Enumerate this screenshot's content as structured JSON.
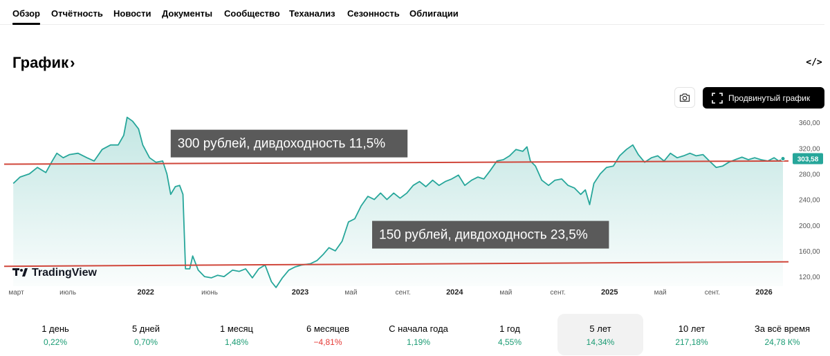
{
  "tabs": [
    {
      "label": "Обзор",
      "active": true
    },
    {
      "label": "Отчётность"
    },
    {
      "label": "Новости"
    },
    {
      "label": "Документы"
    },
    {
      "label": "Сообщество"
    },
    {
      "label": "Теханализ"
    },
    {
      "label": "Сезонность"
    },
    {
      "label": "Облигации"
    }
  ],
  "header": {
    "title": "График",
    "chevron": "›",
    "embed_icon": "code-icon",
    "embed_text": "</>"
  },
  "toolbar": {
    "camera_icon": "camera-icon",
    "advanced_label": "Продвинутый график",
    "advanced_icon": "fullscreen-icon"
  },
  "chart_data": {
    "type": "area",
    "watermark": "TradingView",
    "y_ticks": [
      "360,00",
      "320,00",
      "280,00",
      "240,00",
      "200,00",
      "160,00",
      "120,00"
    ],
    "ylim": [
      105,
      372
    ],
    "x_tick_labels": [
      "март",
      "июль",
      "2022",
      "июнь",
      "2023",
      "май",
      "сент.",
      "2024",
      "май",
      "сент.",
      "2025",
      "май",
      "сент.",
      "2026"
    ],
    "x_tick_dates": [
      "2021-03-01",
      "2021-07-01",
      "2022-01-01",
      "2022-06-01",
      "2023-01-01",
      "2023-05-01",
      "2023-09-01",
      "2024-01-01",
      "2024-05-01",
      "2024-09-01",
      "2025-01-01",
      "2025-05-01",
      "2025-09-01",
      "2026-01-01"
    ],
    "xlim": [
      "2021-02-20",
      "2026-02-28"
    ],
    "last_price": "303,58",
    "last_price_value": 303.58,
    "colors": {
      "line": "#26a69a",
      "fill": "#26a69a",
      "annotation_line": "#d0463a",
      "callout_bg": "#5a5a5a",
      "axis_text": "#555555"
    },
    "series": [
      {
        "points": [
          [
            "2021-02-22",
            265
          ],
          [
            "2021-03-10",
            275
          ],
          [
            "2021-04-01",
            280
          ],
          [
            "2021-04-20",
            290
          ],
          [
            "2021-05-10",
            282
          ],
          [
            "2021-05-25",
            300
          ],
          [
            "2021-06-05",
            312
          ],
          [
            "2021-06-20",
            305
          ],
          [
            "2021-07-05",
            310
          ],
          [
            "2021-07-25",
            312
          ],
          [
            "2021-08-15",
            305
          ],
          [
            "2021-09-01",
            300
          ],
          [
            "2021-09-20",
            318
          ],
          [
            "2021-10-10",
            325
          ],
          [
            "2021-10-28",
            325
          ],
          [
            "2021-11-10",
            340
          ],
          [
            "2021-11-18",
            368
          ],
          [
            "2021-12-01",
            362
          ],
          [
            "2021-12-15",
            350
          ],
          [
            "2021-12-25",
            325
          ],
          [
            "2022-01-10",
            305
          ],
          [
            "2022-01-25",
            298
          ],
          [
            "2022-02-10",
            300
          ],
          [
            "2022-02-20",
            280
          ],
          [
            "2022-03-01",
            248
          ],
          [
            "2022-03-12",
            260
          ],
          [
            "2022-03-22",
            262
          ],
          [
            "2022-03-30",
            248
          ],
          [
            "2022-04-05",
            132
          ],
          [
            "2022-04-15",
            132
          ],
          [
            "2022-04-22",
            152
          ],
          [
            "2022-05-05",
            130
          ],
          [
            "2022-05-20",
            120
          ],
          [
            "2022-06-05",
            118
          ],
          [
            "2022-06-20",
            122
          ],
          [
            "2022-07-05",
            120
          ],
          [
            "2022-07-25",
            130
          ],
          [
            "2022-08-10",
            128
          ],
          [
            "2022-08-25",
            132
          ],
          [
            "2022-09-10",
            118
          ],
          [
            "2022-09-25",
            132
          ],
          [
            "2022-10-10",
            138
          ],
          [
            "2022-10-25",
            112
          ],
          [
            "2022-11-05",
            103
          ],
          [
            "2022-11-20",
            118
          ],
          [
            "2022-12-05",
            130
          ],
          [
            "2022-12-20",
            135
          ],
          [
            "2023-01-05",
            138
          ],
          [
            "2023-01-25",
            140
          ],
          [
            "2023-02-10",
            145
          ],
          [
            "2023-02-25",
            155
          ],
          [
            "2023-03-10",
            165
          ],
          [
            "2023-03-25",
            160
          ],
          [
            "2023-04-10",
            175
          ],
          [
            "2023-04-25",
            205
          ],
          [
            "2023-05-10",
            210
          ],
          [
            "2023-05-25",
            230
          ],
          [
            "2023-06-10",
            245
          ],
          [
            "2023-06-25",
            240
          ],
          [
            "2023-07-10",
            250
          ],
          [
            "2023-07-25",
            240
          ],
          [
            "2023-08-10",
            250
          ],
          [
            "2023-08-25",
            242
          ],
          [
            "2023-09-10",
            250
          ],
          [
            "2023-09-25",
            262
          ],
          [
            "2023-10-10",
            268
          ],
          [
            "2023-10-25",
            260
          ],
          [
            "2023-11-10",
            270
          ],
          [
            "2023-11-25",
            262
          ],
          [
            "2023-12-10",
            268
          ],
          [
            "2023-12-25",
            272
          ],
          [
            "2024-01-10",
            278
          ],
          [
            "2024-01-25",
            262
          ],
          [
            "2024-02-10",
            270
          ],
          [
            "2024-02-25",
            275
          ],
          [
            "2024-03-10",
            272
          ],
          [
            "2024-03-25",
            285
          ],
          [
            "2024-04-10",
            300
          ],
          [
            "2024-04-25",
            302
          ],
          [
            "2024-05-10",
            308
          ],
          [
            "2024-05-25",
            318
          ],
          [
            "2024-06-10",
            315
          ],
          [
            "2024-06-20",
            322
          ],
          [
            "2024-06-28",
            300
          ],
          [
            "2024-07-10",
            292
          ],
          [
            "2024-07-25",
            270
          ],
          [
            "2024-08-10",
            262
          ],
          [
            "2024-08-25",
            270
          ],
          [
            "2024-09-10",
            272
          ],
          [
            "2024-09-25",
            262
          ],
          [
            "2024-10-10",
            258
          ],
          [
            "2024-10-25",
            248
          ],
          [
            "2024-11-05",
            255
          ],
          [
            "2024-11-15",
            232
          ],
          [
            "2024-11-25",
            265
          ],
          [
            "2024-12-10",
            280
          ],
          [
            "2024-12-25",
            290
          ],
          [
            "2025-01-10",
            292
          ],
          [
            "2025-01-25",
            308
          ],
          [
            "2025-02-10",
            318
          ],
          [
            "2025-02-25",
            325
          ],
          [
            "2025-03-10",
            310
          ],
          [
            "2025-03-25",
            298
          ],
          [
            "2025-04-10",
            305
          ],
          [
            "2025-04-25",
            308
          ],
          [
            "2025-05-10",
            300
          ],
          [
            "2025-05-25",
            312
          ],
          [
            "2025-06-10",
            305
          ],
          [
            "2025-06-25",
            308
          ],
          [
            "2025-07-10",
            312
          ],
          [
            "2025-07-25",
            308
          ],
          [
            "2025-08-10",
            310
          ],
          [
            "2025-08-25",
            300
          ],
          [
            "2025-09-10",
            290
          ],
          [
            "2025-09-25",
            292
          ],
          [
            "2025-10-10",
            298
          ],
          [
            "2025-10-25",
            302
          ],
          [
            "2025-11-10",
            306
          ],
          [
            "2025-11-25",
            302
          ],
          [
            "2025-12-10",
            305
          ],
          [
            "2025-12-25",
            302
          ],
          [
            "2026-01-10",
            300
          ],
          [
            "2026-01-25",
            305
          ],
          [
            "2026-02-05",
            300
          ],
          [
            "2026-02-15",
            303.58
          ]
        ]
      }
    ],
    "annotations": [
      {
        "label": "300 рублей, дивдоходность 11,5%",
        "from": [
          "2021-02-20",
          295
        ],
        "to": [
          "2026-02-28",
          300
        ],
        "callout_at": [
          "2022-03-01",
          325
        ]
      },
      {
        "label": "150 рублей, дивдоходность 23,5%",
        "from": [
          "2021-02-20",
          136
        ],
        "to": [
          "2026-02-28",
          143
        ],
        "callout_at": [
          "2023-06-20",
          183
        ]
      }
    ]
  },
  "periods": [
    {
      "label": "1 день",
      "value": "0,22%",
      "dir": "up"
    },
    {
      "label": "5 дней",
      "value": "0,70%",
      "dir": "up"
    },
    {
      "label": "1 месяц",
      "value": "1,48%",
      "dir": "up"
    },
    {
      "label": "6 месяцев",
      "value": "−4,81%",
      "dir": "down"
    },
    {
      "label": "С начала года",
      "value": "1,19%",
      "dir": "up"
    },
    {
      "label": "1 год",
      "value": "4,55%",
      "dir": "up"
    },
    {
      "label": "5 лет",
      "value": "14,34%",
      "dir": "up",
      "active": true
    },
    {
      "label": "10 лет",
      "value": "217,18%",
      "dir": "up"
    },
    {
      "label": "За всё время",
      "value": "24,78 К%",
      "dir": "up"
    }
  ]
}
